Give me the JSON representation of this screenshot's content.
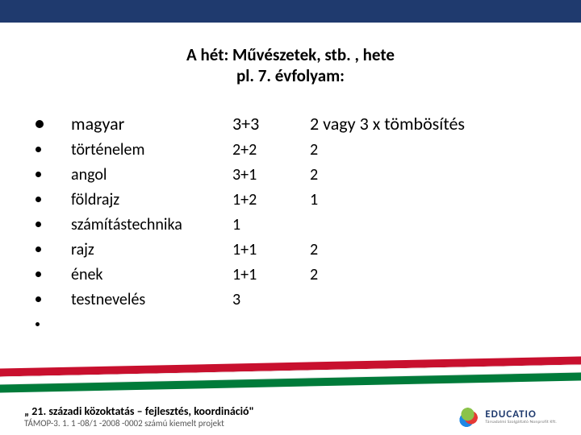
{
  "title": {
    "line1": "A hét: Művészetek, stb. , hete",
    "line2": "pl. 7. évfolyam:"
  },
  "header_block": "2 vagy 3 x  tömbösítés",
  "rows": [
    {
      "subject": "magyar",
      "hours": "3+3",
      "block": ""
    },
    {
      "subject": "történelem",
      "hours": "2+2",
      "block": "2"
    },
    {
      "subject": "angol",
      "hours": "3+1",
      "block": "2"
    },
    {
      "subject": "földrajz",
      "hours": "1+2",
      "block": "1"
    },
    {
      "subject": "számítástechnika",
      "hours": "1",
      "block": ""
    },
    {
      "subject": "rajz",
      "hours": "1+1",
      "block": "2"
    },
    {
      "subject": "ének",
      "hours": "1+1",
      "block": "2"
    },
    {
      "subject": "testnevelés",
      "hours": "3",
      "block": ""
    }
  ],
  "footer": {
    "line1": "„ 21. századi közoktatás – fejlesztés, koordináció\"",
    "line2": "TÁMOP-3. 1. 1 -08/1 -2008 -0002 számú kiemelt projekt"
  },
  "logo": {
    "text": "EDUCATIO",
    "sub": "Társadalmi Szolgáltató Nonprofit Kft."
  },
  "colors": {
    "top_border": "#1f3a6e",
    "stripe_red": "#c8102e",
    "stripe_green": "#007b3a",
    "text": "#000000"
  }
}
